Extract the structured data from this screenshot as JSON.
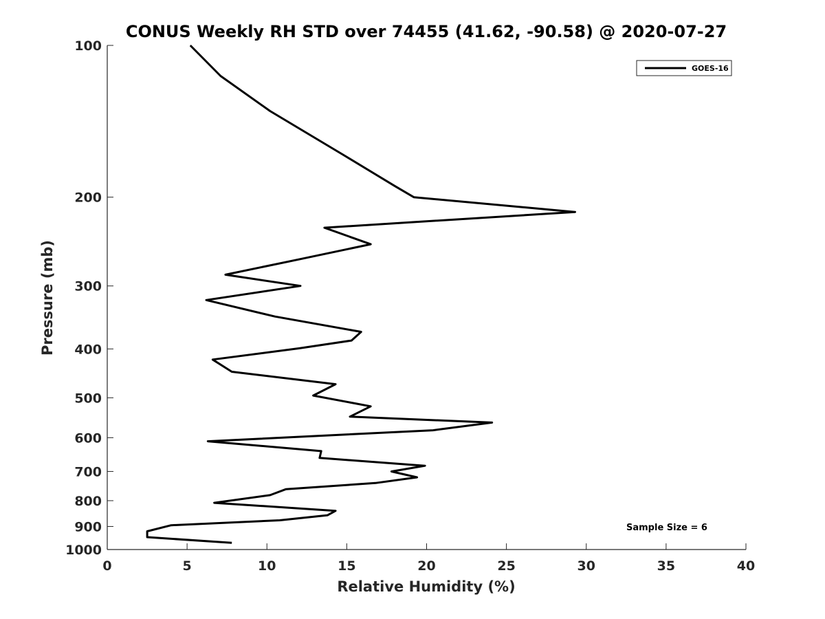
{
  "chart_data": {
    "type": "line",
    "title": "CONUS Weekly RH STD over 74455 (41.62, -90.58) @ 2020-07-27",
    "xlabel": "Relative Humidity (%)",
    "ylabel": "Pressure (mb)",
    "xlim": [
      0,
      40
    ],
    "ylim": [
      1000,
      100
    ],
    "y_scale": "log",
    "y_reversed": true,
    "x_ticks": [
      0,
      5,
      10,
      15,
      20,
      25,
      30,
      35,
      40
    ],
    "y_ticks": [
      100,
      200,
      300,
      400,
      500,
      600,
      700,
      800,
      900,
      1000
    ],
    "grid": false,
    "legend_position": "top-right",
    "annotation": "Sample Size = 6",
    "series": [
      {
        "name": "GOES-16",
        "color": "#000000",
        "points": [
          [
            5.2,
            100
          ],
          [
            7.1,
            115
          ],
          [
            10.2,
            135
          ],
          [
            14.8,
            165
          ],
          [
            18.0,
            190
          ],
          [
            19.2,
            200
          ],
          [
            29.3,
            214
          ],
          [
            13.6,
            230
          ],
          [
            16.5,
            248
          ],
          [
            12.2,
            265
          ],
          [
            7.4,
            285
          ],
          [
            12.1,
            300
          ],
          [
            6.2,
            320
          ],
          [
            10.5,
            345
          ],
          [
            15.9,
            370
          ],
          [
            15.3,
            385
          ],
          [
            12.0,
            399
          ],
          [
            6.6,
            420
          ],
          [
            7.8,
            444
          ],
          [
            14.3,
            470
          ],
          [
            12.9,
            495
          ],
          [
            16.5,
            520
          ],
          [
            15.2,
            545
          ],
          [
            24.1,
            560
          ],
          [
            20.4,
            580
          ],
          [
            6.3,
            610
          ],
          [
            13.4,
            638
          ],
          [
            13.3,
            658
          ],
          [
            19.9,
            682
          ],
          [
            17.8,
            700
          ],
          [
            19.4,
            719
          ],
          [
            16.8,
            738
          ],
          [
            11.2,
            759
          ],
          [
            10.2,
            780
          ],
          [
            6.7,
            808
          ],
          [
            14.3,
            838
          ],
          [
            13.8,
            855
          ],
          [
            10.8,
            875
          ],
          [
            4.0,
            895
          ],
          [
            2.5,
            920
          ],
          [
            2.5,
            945
          ],
          [
            7.8,
            970
          ]
        ]
      }
    ]
  }
}
